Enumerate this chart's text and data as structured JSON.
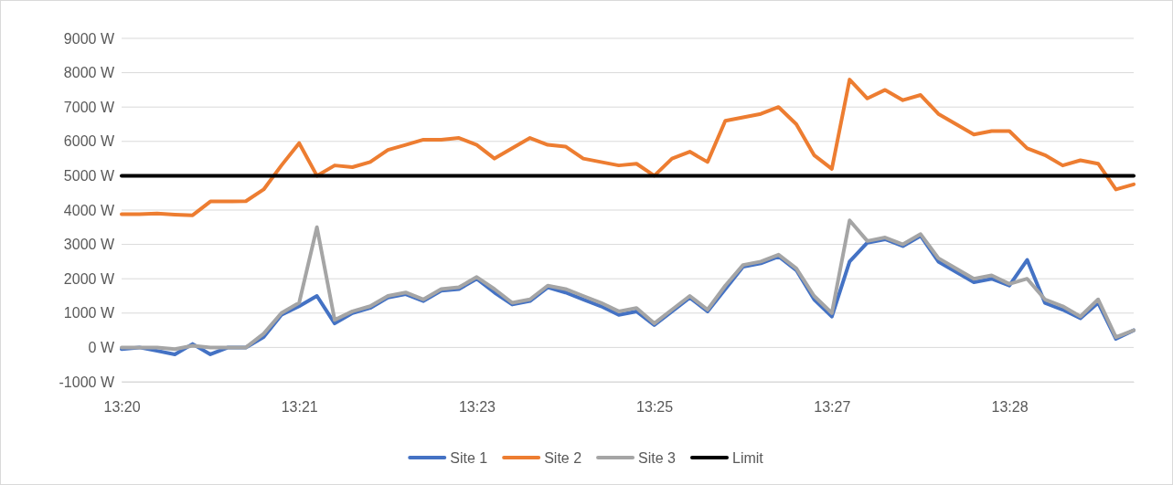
{
  "chart_data": {
    "type": "line",
    "categories": [
      "13:20",
      null,
      null,
      null,
      null,
      null,
      null,
      null,
      null,
      null,
      "13:21",
      null,
      null,
      null,
      null,
      null,
      null,
      null,
      null,
      null,
      "13:23",
      null,
      null,
      null,
      null,
      null,
      null,
      null,
      null,
      null,
      "13:25",
      null,
      null,
      null,
      null,
      null,
      null,
      null,
      null,
      null,
      "13:27",
      null,
      null,
      null,
      null,
      null,
      null,
      null,
      null,
      null,
      "13:28",
      null,
      null,
      null,
      null,
      null,
      null,
      null
    ],
    "ylim": [
      -1000,
      9000
    ],
    "yticks": [
      {
        "value": -1000,
        "label": "-1000 W"
      },
      {
        "value": 0,
        "label": "0 W"
      },
      {
        "value": 1000,
        "label": "1000 W"
      },
      {
        "value": 2000,
        "label": "2000 W"
      },
      {
        "value": 3000,
        "label": "3000 W"
      },
      {
        "value": 4000,
        "label": "4000 W"
      },
      {
        "value": 5000,
        "label": "5000 W"
      },
      {
        "value": 6000,
        "label": "6000 W"
      },
      {
        "value": 7000,
        "label": "7000 W"
      },
      {
        "value": 8000,
        "label": "8000 W"
      },
      {
        "value": 9000,
        "label": "9000 W"
      }
    ],
    "grid": "y",
    "legend": "bottom",
    "marker": "none",
    "line_style": "solid",
    "series": [
      {
        "name": "Site 1",
        "color": "#4472c4",
        "values": [
          -50,
          0,
          -100,
          -200,
          100,
          -200,
          0,
          0,
          300,
          950,
          1200,
          1500,
          700,
          1000,
          1150,
          1450,
          1550,
          1350,
          1650,
          1700,
          2000,
          1600,
          1250,
          1350,
          1750,
          1600,
          1400,
          1200,
          950,
          1050,
          650,
          1050,
          1450,
          1050,
          1700,
          2350,
          2450,
          2650,
          2250,
          1400,
          900,
          2500,
          3050,
          3150,
          2950,
          3250,
          2500,
          2200,
          1900,
          2000,
          1800,
          2550,
          1300,
          1100,
          850,
          1300,
          250,
          500
        ]
      },
      {
        "name": "Site 2",
        "color": "#ed7d31",
        "values": [
          3880,
          3880,
          3900,
          3870,
          3850,
          4250,
          4250,
          4260,
          4600,
          5300,
          5950,
          5000,
          5300,
          5250,
          5400,
          5750,
          5900,
          6050,
          6050,
          6100,
          5900,
          5500,
          5800,
          6100,
          5900,
          5850,
          5500,
          5400,
          5300,
          5350,
          5000,
          5500,
          5700,
          5400,
          6600,
          6700,
          6800,
          7000,
          6500,
          5600,
          5200,
          7800,
          7250,
          7500,
          7200,
          7350,
          6800,
          6500,
          6200,
          6300,
          6300,
          5800,
          5600,
          5300,
          5450,
          5350,
          4600,
          4750
        ]
      },
      {
        "name": "Site 3",
        "color": "#a5a5a5",
        "values": [
          0,
          0,
          0,
          -50,
          50,
          0,
          0,
          0,
          400,
          1000,
          1300,
          3500,
          800,
          1050,
          1200,
          1500,
          1600,
          1400,
          1700,
          1750,
          2050,
          1700,
          1300,
          1400,
          1800,
          1700,
          1500,
          1300,
          1050,
          1150,
          700,
          1100,
          1500,
          1100,
          1800,
          2400,
          2500,
          2700,
          2300,
          1500,
          1000,
          3700,
          3100,
          3200,
          3000,
          3300,
          2600,
          2300,
          2000,
          2100,
          1850,
          2000,
          1400,
          1200,
          900,
          1400,
          300,
          500
        ]
      },
      {
        "name": "Limit",
        "color": "#000000",
        "values": [
          5000,
          5000,
          5000,
          5000,
          5000,
          5000,
          5000,
          5000,
          5000,
          5000,
          5000,
          5000,
          5000,
          5000,
          5000,
          5000,
          5000,
          5000,
          5000,
          5000,
          5000,
          5000,
          5000,
          5000,
          5000,
          5000,
          5000,
          5000,
          5000,
          5000,
          5000,
          5000,
          5000,
          5000,
          5000,
          5000,
          5000,
          5000,
          5000,
          5000,
          5000,
          5000,
          5000,
          5000,
          5000,
          5000,
          5000,
          5000,
          5000,
          5000,
          5000,
          5000,
          5000,
          5000,
          5000,
          5000,
          5000,
          5000
        ]
      }
    ]
  }
}
